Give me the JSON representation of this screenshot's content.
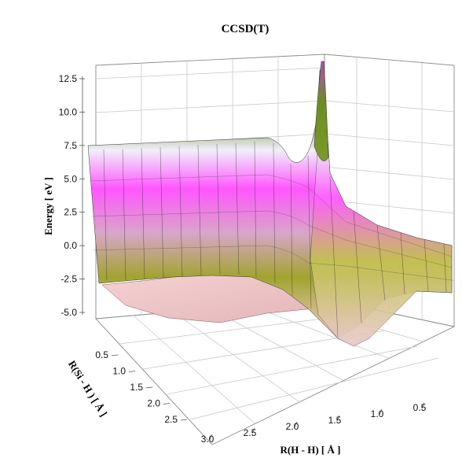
{
  "chart_data": {
    "type": "surface3d",
    "title": "CCSD(T)",
    "zlabel": "Energy  [ eV ]",
    "xlabel": "R(H - H)  [ Å ]",
    "ylabel": "R(Si - H )  [ Å ]",
    "z_ticks": [
      "12.5",
      "10.0",
      "7.5",
      "5.0",
      "2.5",
      "0.0",
      "-2.5",
      "-5.0"
    ],
    "x_ticks": [
      "3.0",
      "2.5",
      "2.0",
      "1.5",
      "1.0",
      "0.5"
    ],
    "y_ticks": [
      "0.5",
      "1.0",
      "1.5",
      "2.0",
      "2.5"
    ],
    "zlim": [
      -5.0,
      12.5
    ],
    "x_range": [
      0.5,
      3.0
    ],
    "y_range": [
      0.5,
      2.5
    ],
    "grid": true,
    "colormap": [
      "#f4c9c9",
      "#9c9c2a",
      "#ff55ff",
      "#f0f0ff",
      "#5d7e1c"
    ],
    "surface_samples": [
      {
        "x": 3.0,
        "y": 0.5,
        "z": 7.5
      },
      {
        "x": 3.0,
        "y": 2.5,
        "z": -3.5
      },
      {
        "x": 1.5,
        "y": 1.0,
        "z": 7.0
      },
      {
        "x": 0.7,
        "y": 0.5,
        "z": 14.0
      },
      {
        "x": 0.5,
        "y": 2.5,
        "z": 0.0
      },
      {
        "x": 1.2,
        "y": 2.5,
        "z": -6.0
      },
      {
        "x": 2.0,
        "y": 2.0,
        "z": -3.0
      }
    ]
  }
}
